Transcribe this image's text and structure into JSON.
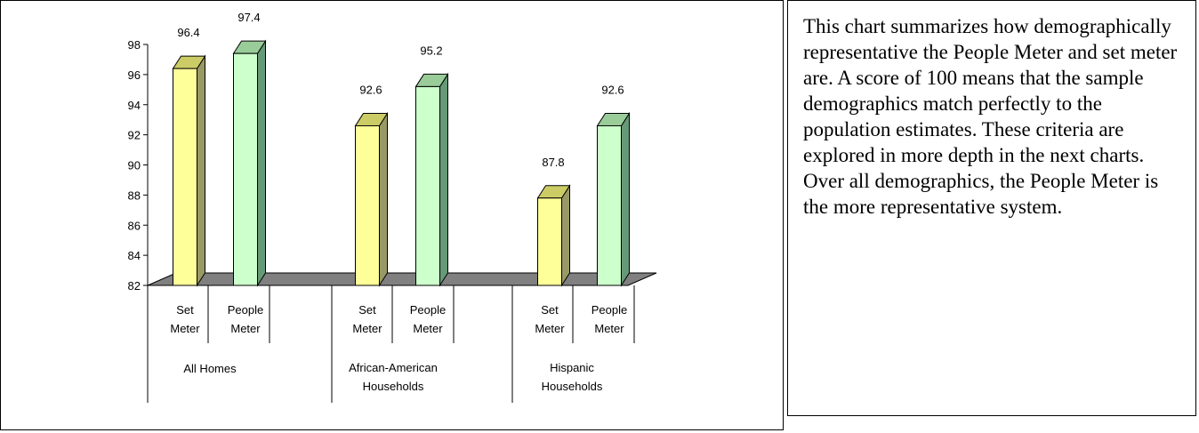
{
  "chart_data": {
    "type": "bar",
    "title": "",
    "xlabel": "",
    "ylabel": "",
    "ylim": [
      82,
      98
    ],
    "yticks": [
      "82",
      "84",
      "86",
      "88",
      "90",
      "92",
      "94",
      "96",
      "98"
    ],
    "groups": [
      {
        "label_lines": [
          "All Homes"
        ],
        "bars": [
          {
            "label_lines": [
              "Set",
              "Meter"
            ],
            "value": 96.4,
            "value_label": "96.4",
            "color": "#ffff99"
          },
          {
            "label_lines": [
              "People",
              "Meter"
            ],
            "value": 97.4,
            "value_label": "97.4",
            "color": "#ccffcc"
          }
        ]
      },
      {
        "label_lines": [
          "African-American",
          "Households"
        ],
        "bars": [
          {
            "label_lines": [
              "Set",
              "Meter"
            ],
            "value": 92.6,
            "value_label": "92.6",
            "color": "#ffff99"
          },
          {
            "label_lines": [
              "People",
              "Meter"
            ],
            "value": 95.2,
            "value_label": "95.2",
            "color": "#ccffcc"
          }
        ]
      },
      {
        "label_lines": [
          "Hispanic",
          "Households"
        ],
        "bars": [
          {
            "label_lines": [
              "Set",
              "Meter"
            ],
            "value": 87.8,
            "value_label": "87.8",
            "color": "#ffff99"
          },
          {
            "label_lines": [
              "People",
              "Meter"
            ],
            "value": 92.6,
            "value_label": "92.6",
            "color": "#ccffcc"
          }
        ]
      }
    ],
    "colors": {
      "set_meter": "#ffff99",
      "people_meter": "#ccffcc",
      "floor": "#808080"
    }
  },
  "summary_text": "This chart summarizes how demographically representative the People Meter and set meter are. A score of 100 means that the sample demographics match perfectly to the population estimates. These criteria are explored in more depth in the next charts. Over all demographics, the People Meter is the more representative system."
}
